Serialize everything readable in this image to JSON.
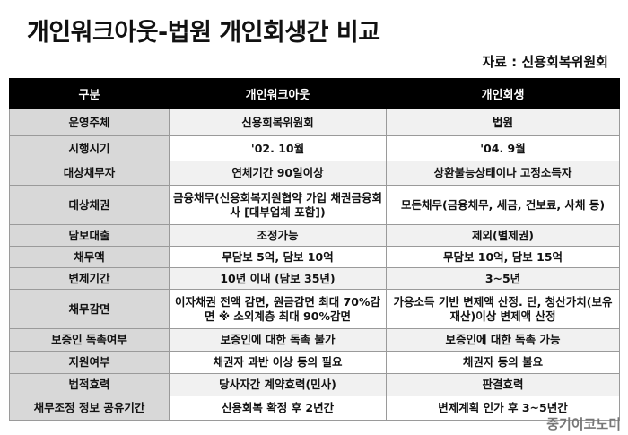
{
  "title": "개인워크아웃-법원 개인회생간 비교",
  "source": "자료 : 신용회복위원회",
  "table": {
    "headers": [
      "구분",
      "개인워크아웃",
      "개인회생"
    ],
    "rows": [
      {
        "label": "운영주체",
        "workout": "신용회복위원회",
        "rehab": "법원"
      },
      {
        "label": "시행시기",
        "workout": "'02. 10월",
        "rehab": "'04. 9월"
      },
      {
        "label": "대상채무자",
        "workout": "연체기간 90일이상",
        "rehab": "상환불능상태이나 고정소득자"
      },
      {
        "label": "대상채권",
        "workout": "금융채무(신용회복지원협약 가입 채권금융회사 [대부업체 포함])",
        "rehab": "모든채무(금융채무, 세금, 건보료, 사채 등)"
      },
      {
        "label": "담보대출",
        "workout": "조정가능",
        "rehab": "제외(별제권)"
      },
      {
        "label": "채무액",
        "workout": "무담보 5억, 담보 10억",
        "rehab": "무담보 10억, 담보 15억"
      },
      {
        "label": "변제기간",
        "workout": "10년 이내 (담보 35년)",
        "rehab": "3~5년"
      },
      {
        "label": "채무감면",
        "workout": "이자채권 전액 감면, 원금감면 최대 70%감면 ※ 소외계층 최대 90%감면",
        "rehab": "가용소득 기반 변제액 산정. 단, 청산가치(보유재산)이상 변제액 산정"
      },
      {
        "label": "보증인 독촉여부",
        "workout": "보증인에 대한 독촉 불가",
        "rehab": "보증인에 대한 독촉 가능"
      },
      {
        "label": "지원여부",
        "workout": "채권자 과반 이상 동의 필요",
        "rehab": "채권자 동의 불요"
      },
      {
        "label": "법적효력",
        "workout": "당사자간 계약효력(민사)",
        "rehab": "판결효력"
      },
      {
        "label": "채무조정 정보 공유기간",
        "workout": "신용회복 확정 후 2년간",
        "rehab": "변제계획 인가 후 3~5년간"
      }
    ]
  },
  "watermark": "중기이코노미"
}
